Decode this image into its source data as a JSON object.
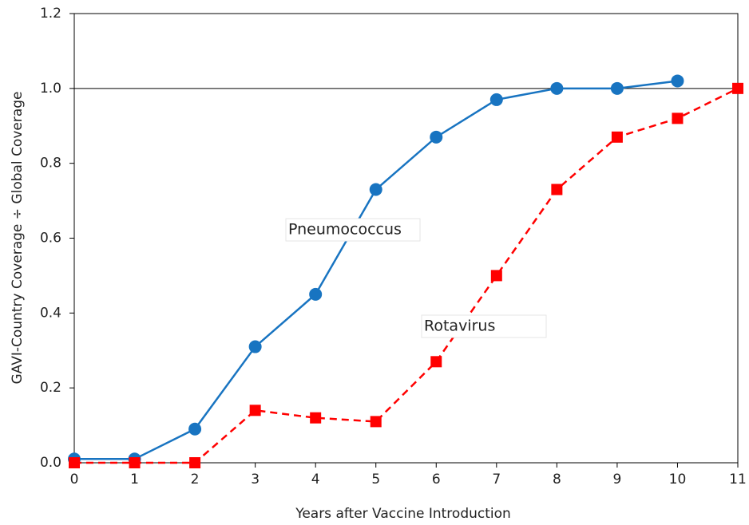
{
  "chart_data": {
    "type": "line",
    "x_label": "Years after Vaccine Introduction",
    "y_label": "GAVI-Country Coverage ÷ Global Coverage",
    "x": [
      0,
      1,
      2,
      3,
      4,
      5,
      6,
      7,
      8,
      9,
      10,
      11
    ],
    "series": [
      {
        "name": "Pneumococcus",
        "color": "#1874c1",
        "marker": "circle",
        "dash": false,
        "values": [
          0.01,
          0.01,
          0.09,
          0.31,
          0.45,
          0.73,
          0.87,
          0.97,
          1.0,
          1.0,
          1.02,
          null
        ]
      },
      {
        "name": "Rotavirus",
        "color": "#ff0000",
        "marker": "square",
        "dash": true,
        "values": [
          0,
          0,
          0,
          0.14,
          0.12,
          0.11,
          0.27,
          0.5,
          0.73,
          0.87,
          0.92,
          1.0
        ]
      }
    ],
    "reference_line": 1.0,
    "xlim": [
      0,
      11
    ],
    "xticks": [
      0,
      1,
      2,
      3,
      4,
      5,
      6,
      7,
      8,
      9,
      10,
      11
    ],
    "ylim": [
      0,
      1.2
    ],
    "yticks": [
      {
        "value": 0,
        "label": "0.0"
      },
      {
        "value": 0.2,
        "label": "0.2"
      },
      {
        "value": 0.4,
        "label": "0.4"
      },
      {
        "value": 0.6,
        "label": "0.6"
      },
      {
        "value": 0.8,
        "label": "0.8"
      },
      {
        "value": 1.0,
        "label": "1.0"
      },
      {
        "value": 1.2,
        "label": "1.2"
      }
    ],
    "grid": false
  }
}
